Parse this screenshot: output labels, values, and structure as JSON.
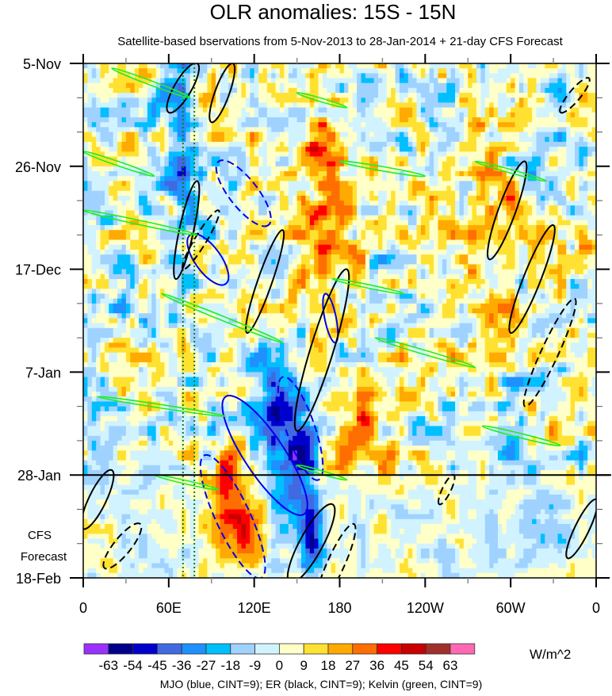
{
  "chart_data": {
    "type": "heatmap",
    "title": "OLR anomalies: 15S - 15N",
    "subtitle": "Satellite-based bservations from 5-Nov-2013 to 28-Jan-2014 + 21-day CFS Forecast",
    "x_ticks": [
      "0",
      "60E",
      "120E",
      "180",
      "120W",
      "60W",
      "0"
    ],
    "x_tick_values": [
      0,
      60,
      120,
      180,
      240,
      300,
      360
    ],
    "y_ticks": [
      "5-Nov",
      "26-Nov",
      "17-Dec",
      "7-Jan",
      "28-Jan",
      "18-Feb"
    ],
    "y_tick_days": [
      0,
      21,
      42,
      63,
      84,
      105
    ],
    "xlim": [
      0,
      360
    ],
    "ylim_days": [
      0,
      105
    ],
    "forecast_start_day": 84,
    "forecast_label": [
      "CFS",
      "Forecast"
    ],
    "units": "W/m^2",
    "colorbar": {
      "levels": [
        "-63",
        "-54",
        "-45",
        "-36",
        "-27",
        "-18",
        "-9",
        "0",
        "9",
        "18",
        "27",
        "36",
        "45",
        "54",
        "63"
      ],
      "colors": [
        "#9b30ff",
        "#00008b",
        "#0000cd",
        "#4169e1",
        "#1e90ff",
        "#00bfff",
        "#a0d2ff",
        "#d1f3ff",
        "#ffffc8",
        "#ffe132",
        "#ffaa00",
        "#ff6e00",
        "#ff0000",
        "#c80000",
        "#a0302a",
        "#ff69b4"
      ]
    },
    "contour_legend": "MJO (blue, CINT=9); ER (black, CINT=9); Kelvin (green, CINT=9)",
    "reference_lines_lon": [
      70,
      78
    ],
    "anomaly_features": [
      {
        "lon": 70,
        "day": 18,
        "amp": -30,
        "rlon": 12,
        "rday": 14
      },
      {
        "lon": 60,
        "day": 5,
        "amp": -28,
        "rlon": 14,
        "rday": 6
      },
      {
        "lon": 135,
        "day": 72,
        "amp": -40,
        "rlon": 14,
        "rday": 10
      },
      {
        "lon": 155,
        "day": 78,
        "amp": -35,
        "rlon": 12,
        "rday": 10
      },
      {
        "lon": 145,
        "day": 88,
        "amp": -25,
        "rlon": 14,
        "rday": 8
      },
      {
        "lon": 175,
        "day": 30,
        "amp": 30,
        "rlon": 20,
        "rday": 14
      },
      {
        "lon": 165,
        "day": 15,
        "amp": 22,
        "rlon": 16,
        "rday": 8
      },
      {
        "lon": 110,
        "day": 95,
        "amp": 35,
        "rlon": 18,
        "rday": 8
      },
      {
        "lon": 100,
        "day": 85,
        "amp": 30,
        "rlon": 14,
        "rday": 6
      },
      {
        "lon": 160,
        "day": 96,
        "amp": -45,
        "rlon": 8,
        "rday": 8
      },
      {
        "lon": 200,
        "day": 75,
        "amp": 18,
        "rlon": 25,
        "rday": 10
      },
      {
        "lon": 275,
        "day": 30,
        "amp": 15,
        "rlon": 25,
        "rday": 20
      },
      {
        "lon": 330,
        "day": 10,
        "amp": -15,
        "rlon": 15,
        "rday": 8
      },
      {
        "lon": 320,
        "day": 95,
        "amp": -15,
        "rlon": 20,
        "rday": 8
      }
    ],
    "contours": [
      {
        "wave": "MJO",
        "sign": "neg",
        "p1": [
          100,
          68
        ],
        "p2": [
          155,
          92
        ],
        "width": 14
      },
      {
        "wave": "MJO",
        "sign": "neg",
        "p1": [
          75,
          35
        ],
        "p2": [
          100,
          45
        ],
        "width": 9
      },
      {
        "wave": "MJO",
        "sign": "pos",
        "p1": [
          95,
          20
        ],
        "p2": [
          130,
          33
        ],
        "width": 10
      },
      {
        "wave": "MJO",
        "sign": "pos",
        "p1": [
          85,
          80
        ],
        "p2": [
          125,
          105
        ],
        "width": 12
      },
      {
        "wave": "MJO",
        "sign": "pos",
        "p1": [
          140,
          64
        ],
        "p2": [
          165,
          85
        ],
        "width": 10
      },
      {
        "wave": "MJO",
        "sign": "neg",
        "p1": [
          170,
          47
        ],
        "p2": [
          177,
          57
        ],
        "width": 4
      },
      {
        "wave": "ER",
        "sign": "neg",
        "p1": [
          185,
          42
        ],
        "p2": [
          150,
          75
        ],
        "width": 8
      },
      {
        "wave": "ER",
        "sign": "neg",
        "p1": [
          175,
          90
        ],
        "p2": [
          145,
          106
        ],
        "width": 8
      },
      {
        "wave": "ER",
        "sign": "pos",
        "p1": [
          190,
          94
        ],
        "p2": [
          165,
          110
        ],
        "width": 6
      },
      {
        "wave": "ER",
        "sign": "neg",
        "p1": [
          80,
          0
        ],
        "p2": [
          60,
          10
        ],
        "width": 6
      },
      {
        "wave": "ER",
        "sign": "neg",
        "p1": [
          105,
          0
        ],
        "p2": [
          90,
          12
        ],
        "width": 5
      },
      {
        "wave": "ER",
        "sign": "neg",
        "p1": [
          80,
          24
        ],
        "p2": [
          65,
          44
        ],
        "width": 5
      },
      {
        "wave": "ER",
        "sign": "neg",
        "p1": [
          140,
          34
        ],
        "p2": [
          115,
          55
        ],
        "width": 5
      },
      {
        "wave": "ER",
        "sign": "pos",
        "p1": [
          95,
          30
        ],
        "p2": [
          70,
          42
        ],
        "width": 4
      },
      {
        "wave": "ER",
        "sign": "neg",
        "p1": [
          330,
          33
        ],
        "p2": [
          300,
          55
        ],
        "width": 6
      },
      {
        "wave": "ER",
        "sign": "pos",
        "p1": [
          345,
          48
        ],
        "p2": [
          310,
          70
        ],
        "width": 6
      },
      {
        "wave": "ER",
        "sign": "neg",
        "p1": [
          310,
          20
        ],
        "p2": [
          285,
          40
        ],
        "width": 6
      },
      {
        "wave": "ER",
        "sign": "neg",
        "p1": [
          20,
          83
        ],
        "p2": [
          0,
          95
        ],
        "width": 6
      },
      {
        "wave": "ER",
        "sign": "pos",
        "p1": [
          40,
          94
        ],
        "p2": [
          15,
          103
        ],
        "width": 6
      },
      {
        "wave": "ER",
        "sign": "neg",
        "p1": [
          360,
          89
        ],
        "p2": [
          340,
          101
        ],
        "width": 5
      },
      {
        "wave": "ER",
        "sign": "pos",
        "p1": [
          355,
          3
        ],
        "p2": [
          335,
          10
        ],
        "width": 4
      },
      {
        "wave": "ER",
        "sign": "pos",
        "p1": [
          260,
          84
        ],
        "p2": [
          250,
          90
        ],
        "width": 3
      },
      {
        "wave": "Kelvin",
        "sign": "pos",
        "p1": [
          20,
          1
        ],
        "p2": [
          75,
          7
        ],
        "width": 1.5
      },
      {
        "wave": "Kelvin",
        "sign": "pos",
        "p1": [
          0,
          18
        ],
        "p2": [
          50,
          23
        ],
        "width": 1.5
      },
      {
        "wave": "Kelvin",
        "sign": "pos",
        "p1": [
          0,
          30
        ],
        "p2": [
          80,
          35
        ],
        "width": 1.5
      },
      {
        "wave": "Kelvin",
        "sign": "pos",
        "p1": [
          55,
          47
        ],
        "p2": [
          140,
          57
        ],
        "width": 1.5
      },
      {
        "wave": "Kelvin",
        "sign": "pos",
        "p1": [
          205,
          56
        ],
        "p2": [
          275,
          62
        ],
        "width": 1.5
      },
      {
        "wave": "Kelvin",
        "sign": "pos",
        "p1": [
          175,
          44
        ],
        "p2": [
          225,
          47
        ],
        "width": 1.2
      },
      {
        "wave": "Kelvin",
        "sign": "pos",
        "p1": [
          180,
          20
        ],
        "p2": [
          240,
          23
        ],
        "width": 1.5
      },
      {
        "wave": "Kelvin",
        "sign": "pos",
        "p1": [
          10,
          68
        ],
        "p2": [
          100,
          72
        ],
        "width": 1.2
      },
      {
        "wave": "Kelvin",
        "sign": "pos",
        "p1": [
          280,
          74
        ],
        "p2": [
          335,
          78
        ],
        "width": 1.5
      },
      {
        "wave": "Kelvin",
        "sign": "pos",
        "p1": [
          50,
          84
        ],
        "p2": [
          95,
          87
        ],
        "width": 1.2
      },
      {
        "wave": "Kelvin",
        "sign": "pos",
        "p1": [
          150,
          82
        ],
        "p2": [
          185,
          85
        ],
        "width": 1.2
      },
      {
        "wave": "Kelvin",
        "sign": "pos",
        "p1": [
          150,
          6
        ],
        "p2": [
          185,
          9
        ],
        "width": 1.2
      },
      {
        "wave": "Kelvin",
        "sign": "pos",
        "p1": [
          275,
          20
        ],
        "p2": [
          325,
          24
        ],
        "width": 1.2
      }
    ]
  }
}
